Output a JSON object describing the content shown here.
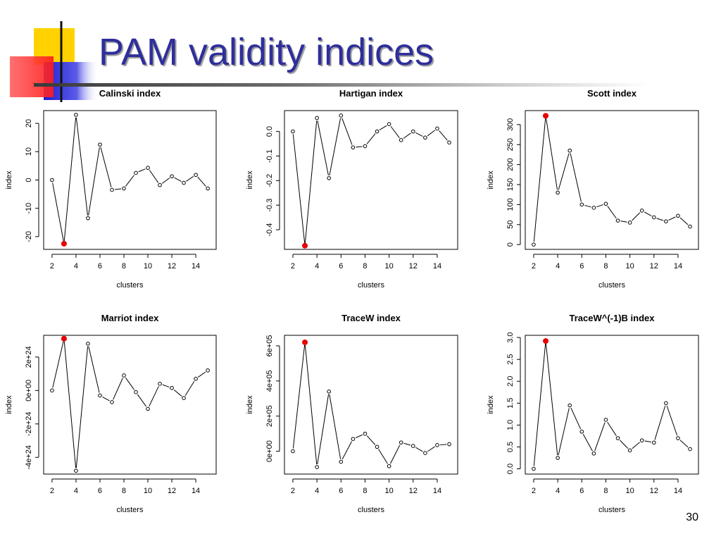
{
  "slide": {
    "title": "PAM validity indices",
    "number": "30"
  },
  "colors": {
    "title": "#2e2e9c",
    "highlight": "#e60000",
    "logo_yellow": "#ffd200",
    "logo_red": "#ff2a2a",
    "logo_blue": "#2929d6"
  },
  "chart_data": [
    {
      "type": "line",
      "title": "Calinski index",
      "xlabel": "clusters",
      "ylabel": "index",
      "x": [
        2,
        3,
        4,
        5,
        6,
        7,
        8,
        9,
        10,
        11,
        12,
        13,
        14,
        15
      ],
      "values": [
        0,
        -22.5,
        23,
        -13.5,
        12.5,
        -3.5,
        -3,
        2.5,
        4.3,
        -1.8,
        1.3,
        -1,
        1.8,
        -3
      ],
      "highlight_index": 1,
      "xlim": [
        1.3,
        15.7
      ],
      "ylim": [
        -24.5,
        24.5
      ],
      "xticks": [
        "2",
        "4",
        "6",
        "8",
        "10",
        "12",
        "14"
      ],
      "xtick_values": [
        2,
        4,
        6,
        8,
        10,
        12,
        14
      ],
      "yticks": [
        "-20",
        "-10",
        "0",
        "10",
        "20"
      ],
      "ytick_values": [
        -20,
        -10,
        0,
        10,
        20
      ]
    },
    {
      "type": "line",
      "title": "Hartigan index",
      "xlabel": "clusters",
      "ylabel": "index",
      "x": [
        2,
        3,
        4,
        5,
        6,
        7,
        8,
        9,
        10,
        11,
        12,
        13,
        14,
        15
      ],
      "values": [
        0,
        -0.465,
        0.055,
        -0.19,
        0.065,
        -0.065,
        -0.06,
        0,
        0.03,
        -0.035,
        0,
        -0.025,
        0.012,
        -0.045
      ],
      "highlight_index": 1,
      "xlim": [
        1.3,
        15.7
      ],
      "ylim": [
        -0.48,
        0.085
      ],
      "xticks": [
        "2",
        "4",
        "6",
        "8",
        "10",
        "12",
        "14"
      ],
      "xtick_values": [
        2,
        4,
        6,
        8,
        10,
        12,
        14
      ],
      "yticks": [
        "-0.4",
        "-0.3",
        "-0.2",
        "-0.1",
        "0.0"
      ],
      "ytick_values": [
        -0.4,
        -0.3,
        -0.2,
        -0.1,
        0
      ]
    },
    {
      "type": "line",
      "title": "Scott index",
      "xlabel": "clusters",
      "ylabel": "index",
      "x": [
        2,
        3,
        4,
        5,
        6,
        7,
        8,
        9,
        10,
        11,
        12,
        13,
        14,
        15
      ],
      "values": [
        0,
        322,
        130,
        235,
        100,
        92,
        102,
        60,
        55,
        85,
        68,
        58,
        72,
        45
      ],
      "highlight_index": 1,
      "xlim": [
        1.3,
        15.7
      ],
      "ylim": [
        -12,
        335
      ],
      "xticks": [
        "2",
        "4",
        "6",
        "8",
        "10",
        "12",
        "14"
      ],
      "xtick_values": [
        2,
        4,
        6,
        8,
        10,
        12,
        14
      ],
      "yticks": [
        "0",
        "50",
        "100",
        "150",
        "200",
        "250",
        "300"
      ],
      "ytick_values": [
        0,
        50,
        100,
        150,
        200,
        250,
        300
      ]
    },
    {
      "type": "line",
      "title": "Marriot index",
      "xlabel": "clusters",
      "ylabel": "index",
      "x": [
        2,
        3,
        4,
        5,
        6,
        7,
        8,
        9,
        10,
        11,
        12,
        13,
        14,
        15
      ],
      "values": [
        0,
        3.1,
        -4.8,
        2.8,
        -0.3,
        -0.7,
        0.9,
        -0.1,
        -1.1,
        0.4,
        0.15,
        -0.45,
        0.7,
        1.2
      ],
      "highlight_index": 1,
      "xlim": [
        1.3,
        15.7
      ],
      "ylim": [
        -5,
        3.3
      ],
      "xticks": [
        "2",
        "4",
        "6",
        "8",
        "10",
        "12",
        "14"
      ],
      "xtick_values": [
        2,
        4,
        6,
        8,
        10,
        12,
        14
      ],
      "yticks": [
        "-4e+24",
        "-2e+24",
        "0e+00",
        "2e+24"
      ],
      "ytick_values": [
        -4,
        -2,
        0,
        2
      ]
    },
    {
      "type": "line",
      "title": "TraceW index",
      "xlabel": "clusters",
      "ylabel": "index",
      "x": [
        2,
        3,
        4,
        5,
        6,
        7,
        8,
        9,
        10,
        11,
        12,
        13,
        14,
        15
      ],
      "values": [
        0,
        6.2,
        -0.9,
        3.4,
        -0.6,
        0.7,
        1,
        0.25,
        -0.85,
        0.5,
        0.3,
        -0.1,
        0.35,
        0.4
      ],
      "highlight_index": 1,
      "xlim": [
        1.3,
        15.7
      ],
      "ylim": [
        -1.3,
        6.6
      ],
      "xticks": [
        "2",
        "4",
        "6",
        "8",
        "10",
        "12",
        "14"
      ],
      "xtick_values": [
        2,
        4,
        6,
        8,
        10,
        12,
        14
      ],
      "yticks": [
        "0e+00",
        "2e+05",
        "4e+05",
        "6e+05"
      ],
      "ytick_values": [
        0,
        2,
        4,
        6
      ]
    },
    {
      "type": "line",
      "title": "TraceW^(-1)B index",
      "xlabel": "clusters",
      "ylabel": "index",
      "x": [
        2,
        3,
        4,
        5,
        6,
        7,
        8,
        9,
        10,
        11,
        12,
        13,
        14,
        15
      ],
      "values": [
        0,
        2.92,
        0.25,
        1.45,
        0.85,
        0.35,
        1.12,
        0.7,
        0.42,
        0.65,
        0.6,
        1.5,
        0.7,
        0.45
      ],
      "highlight_index": 1,
      "xlim": [
        1.3,
        15.7
      ],
      "ylim": [
        -0.12,
        3.05
      ],
      "xticks": [
        "2",
        "4",
        "6",
        "8",
        "10",
        "12",
        "14"
      ],
      "xtick_values": [
        2,
        4,
        6,
        8,
        10,
        12,
        14
      ],
      "yticks": [
        "0.0",
        "0.5",
        "1.0",
        "1.5",
        "2.0",
        "2.5",
        "3.0"
      ],
      "ytick_values": [
        0,
        0.5,
        1,
        1.5,
        2,
        2.5,
        3
      ]
    }
  ]
}
